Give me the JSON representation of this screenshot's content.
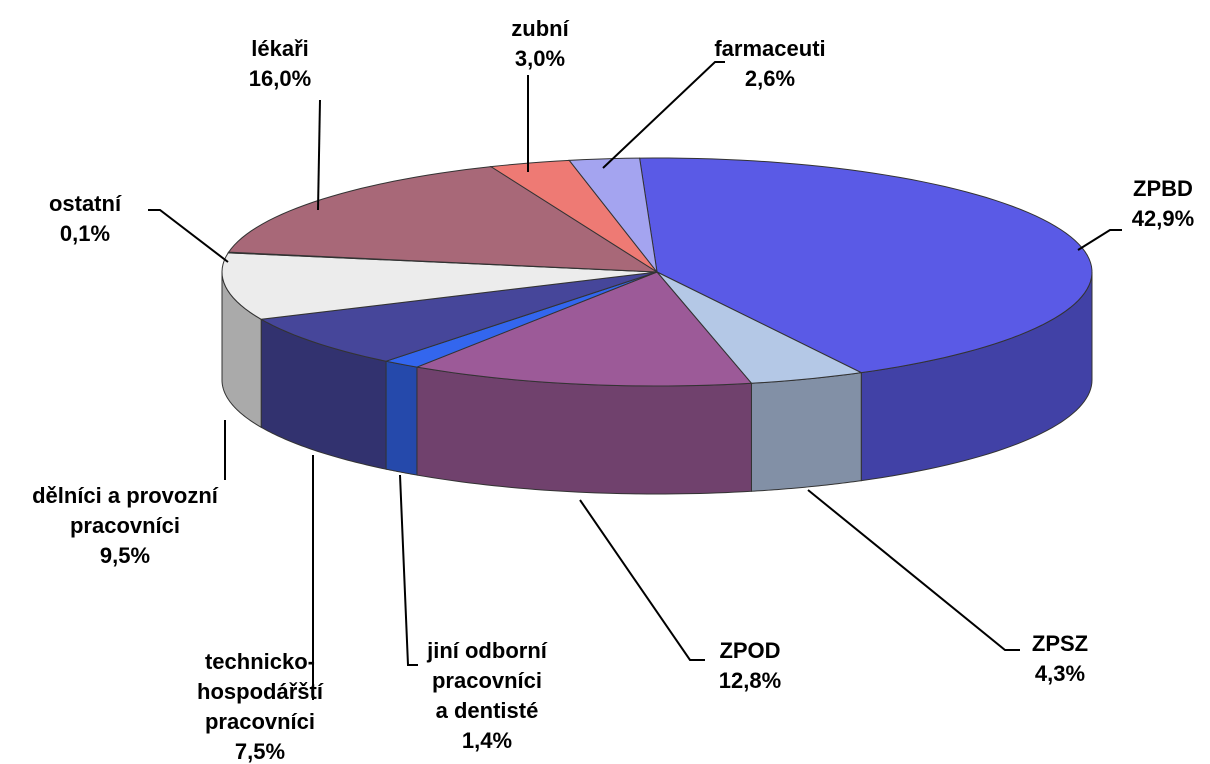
{
  "chart_data": {
    "type": "pie3d",
    "categories": [
      "ZPBD",
      "ZPSZ",
      "ZPOD",
      "jiní odborní pracovníci a dentisté",
      "technicko-hospodářští pracovníci",
      "dělníci a provozní pracovníci",
      "ostatní",
      "lékaři",
      "zubní lékaři",
      "farmaceuti"
    ],
    "values": [
      42.9,
      4.3,
      12.8,
      1.4,
      7.5,
      9.5,
      0.1,
      16.0,
      3.0,
      2.6
    ],
    "value_labels": [
      "42,9%",
      "4,3%",
      "12,8%",
      "1,4%",
      "7,5%",
      "9,5%",
      "0,1%",
      "16,0%",
      "3,0%",
      "2,6%"
    ],
    "colors": [
      "#5a5ae6",
      "#b4c8e6",
      "#9c5a98",
      "#3366ee",
      "#46469a",
      "#ececec",
      "#dddddd",
      "#a86878",
      "#ee7a74",
      "#a4a4f0"
    ]
  }
}
